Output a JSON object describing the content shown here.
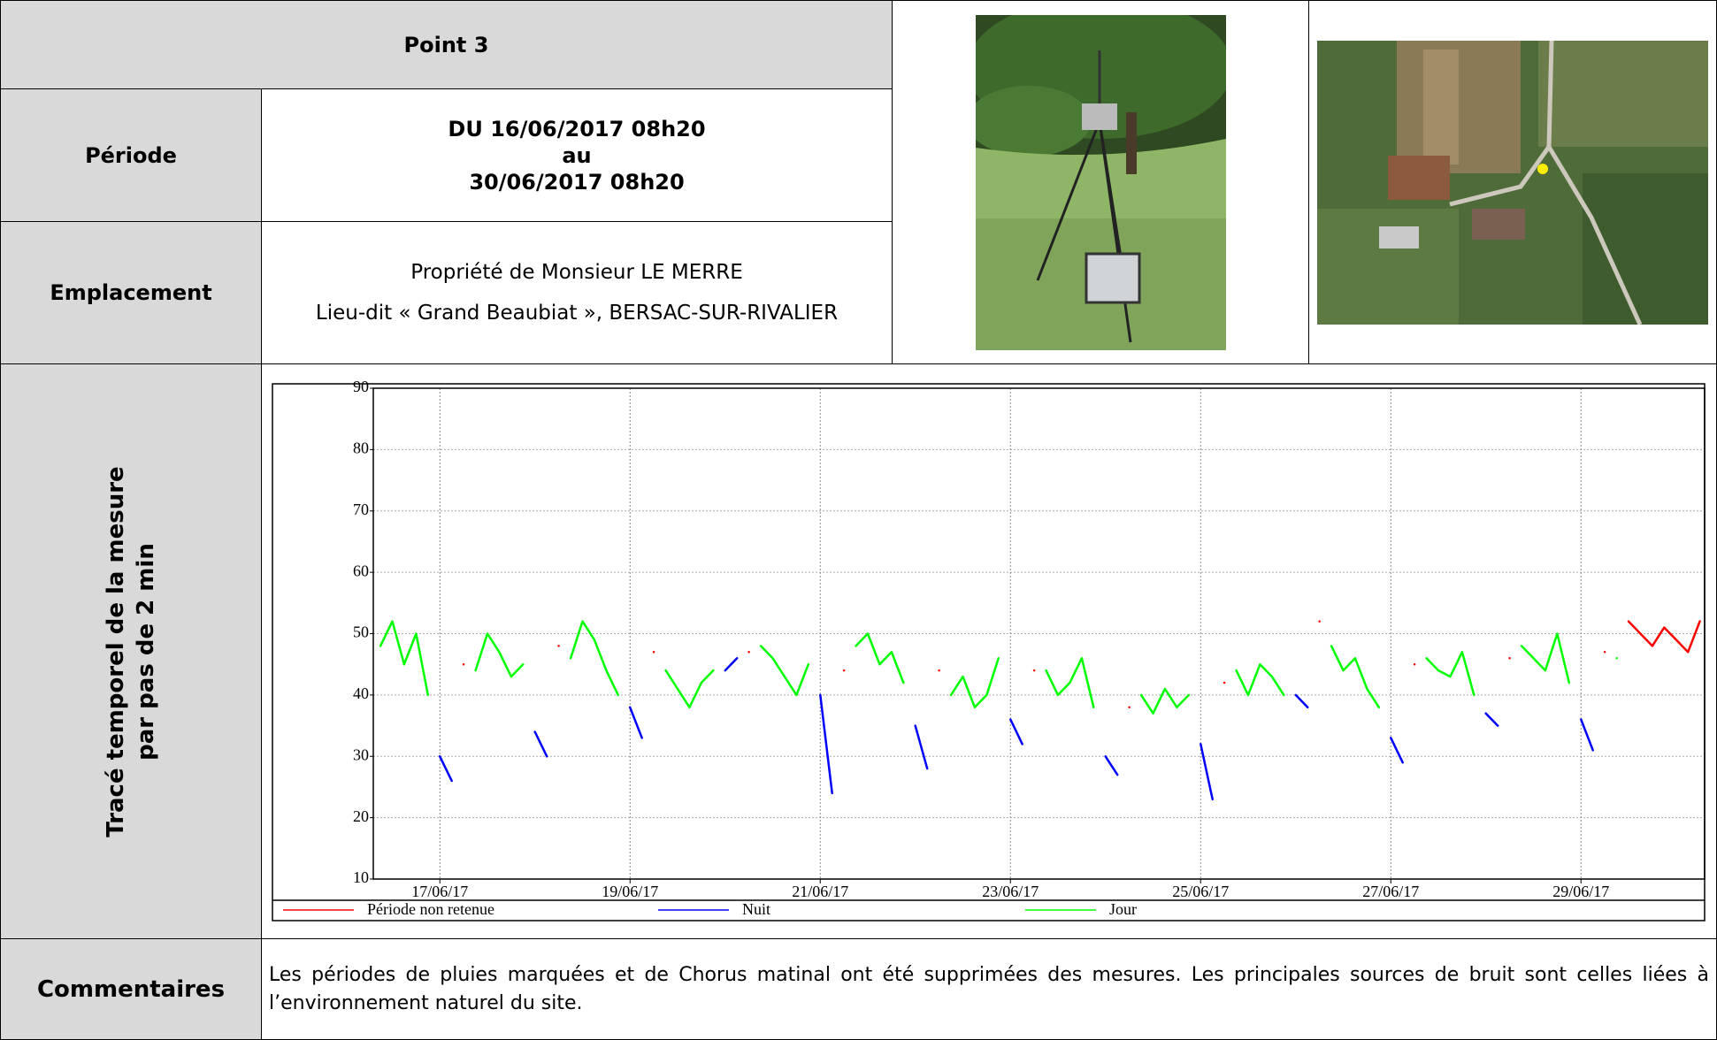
{
  "header": {
    "title": "Point 3"
  },
  "periode": {
    "label": "Période",
    "lines": [
      "DU 16/06/2017 08h20",
      "au",
      "30/06/2017 08h20"
    ]
  },
  "emplacement": {
    "label": "Emplacement",
    "lines": [
      "Propriété de Monsieur LE MERRE",
      "Lieu-dit « Grand Beaubiat », BERSAC-SUR-RIVALIER"
    ]
  },
  "trace": {
    "label_lines": [
      "Tracé temporel de la mesure",
      "par pas de 2 min"
    ]
  },
  "chart_data": {
    "type": "line",
    "xlim": [
      16.3,
      30.3
    ],
    "xticks": [
      {
        "value": 17,
        "label": "17/06/17"
      },
      {
        "value": 19,
        "label": "19/06/17"
      },
      {
        "value": 21,
        "label": "21/06/17"
      },
      {
        "value": 23,
        "label": "23/06/17"
      },
      {
        "value": 25,
        "label": "25/06/17"
      },
      {
        "value": 27,
        "label": "27/06/17"
      },
      {
        "value": 29,
        "label": "29/06/17"
      }
    ],
    "ylim": [
      10,
      90
    ],
    "yticks": [
      10,
      20,
      30,
      40,
      50,
      60,
      70,
      80,
      90
    ],
    "grid": true,
    "legend": "bottom",
    "x": [
      16.375,
      16.5,
      16.625,
      16.75,
      16.875,
      17,
      17.125,
      17.25,
      17.375,
      17.5,
      17.625,
      17.75,
      17.875,
      18,
      18.125,
      18.25,
      18.375,
      18.5,
      18.625,
      18.75,
      18.875,
      19,
      19.125,
      19.25,
      19.375,
      19.5,
      19.625,
      19.75,
      19.875,
      20,
      20.125,
      20.25,
      20.375,
      20.5,
      20.625,
      20.75,
      20.875,
      21,
      21.125,
      21.25,
      21.375,
      21.5,
      21.625,
      21.75,
      21.875,
      22,
      22.125,
      22.25,
      22.375,
      22.5,
      22.625,
      22.75,
      22.875,
      23,
      23.125,
      23.25,
      23.375,
      23.5,
      23.625,
      23.75,
      23.875,
      24,
      24.125,
      24.25,
      24.375,
      24.5,
      24.625,
      24.75,
      24.875,
      25,
      25.125,
      25.25,
      25.375,
      25.5,
      25.625,
      25.75,
      25.875,
      26,
      26.125,
      26.25,
      26.375,
      26.5,
      26.625,
      26.75,
      26.875,
      27,
      27.125,
      27.25,
      27.375,
      27.5,
      27.625,
      27.75,
      27.875,
      28,
      28.125,
      28.25,
      28.375,
      28.5,
      28.625,
      28.75,
      28.875,
      29,
      29.125,
      29.25,
      29.375,
      29.5,
      29.625,
      29.75,
      29.875,
      30,
      30.125,
      30.25
    ],
    "series": [
      {
        "name": "Période non retenue",
        "color": "#ff0000",
        "values": [
          null,
          null,
          null,
          null,
          null,
          null,
          null,
          45,
          null,
          null,
          null,
          null,
          null,
          null,
          null,
          48,
          null,
          null,
          null,
          null,
          null,
          null,
          null,
          47,
          null,
          null,
          null,
          null,
          null,
          null,
          null,
          47,
          null,
          null,
          null,
          null,
          null,
          null,
          null,
          44,
          null,
          null,
          null,
          null,
          null,
          null,
          null,
          44,
          null,
          null,
          null,
          null,
          null,
          null,
          null,
          44,
          null,
          null,
          null,
          null,
          null,
          null,
          null,
          38,
          null,
          null,
          null,
          null,
          null,
          null,
          null,
          42,
          null,
          null,
          null,
          null,
          null,
          null,
          null,
          52,
          null,
          null,
          null,
          null,
          null,
          null,
          null,
          45,
          null,
          null,
          null,
          null,
          null,
          null,
          null,
          46,
          null,
          null,
          null,
          null,
          null,
          null,
          null,
          47,
          null,
          52,
          50,
          48,
          51,
          49,
          47,
          52
        ]
      },
      {
        "name": "Nuit",
        "color": "#0000ff",
        "values": [
          null,
          null,
          null,
          null,
          null,
          30,
          26,
          null,
          null,
          null,
          null,
          null,
          null,
          34,
          30,
          null,
          null,
          null,
          null,
          null,
          null,
          38,
          33,
          null,
          null,
          null,
          null,
          null,
          null,
          44,
          46,
          null,
          null,
          null,
          null,
          null,
          null,
          40,
          24,
          null,
          null,
          null,
          null,
          null,
          null,
          35,
          28,
          null,
          null,
          null,
          null,
          null,
          null,
          36,
          32,
          null,
          null,
          null,
          null,
          null,
          null,
          30,
          27,
          null,
          null,
          null,
          null,
          null,
          null,
          32,
          23,
          null,
          null,
          null,
          null,
          null,
          null,
          40,
          38,
          null,
          null,
          null,
          null,
          null,
          null,
          33,
          29,
          null,
          null,
          null,
          null,
          null,
          null,
          37,
          35,
          null,
          null,
          null,
          null,
          null,
          null,
          36,
          31,
          null,
          null,
          null,
          null,
          null,
          null,
          null,
          null,
          null
        ]
      },
      {
        "name": "Jour",
        "color": "#00ff00",
        "values": [
          48,
          52,
          45,
          50,
          40,
          null,
          null,
          null,
          44,
          50,
          47,
          43,
          45,
          null,
          null,
          null,
          46,
          52,
          49,
          44,
          40,
          null,
          null,
          null,
          44,
          41,
          38,
          42,
          44,
          null,
          null,
          null,
          48,
          46,
          43,
          40,
          45,
          null,
          null,
          null,
          48,
          50,
          45,
          47,
          42,
          null,
          null,
          null,
          40,
          43,
          38,
          40,
          46,
          null,
          null,
          null,
          44,
          40,
          42,
          46,
          38,
          null,
          null,
          null,
          40,
          37,
          41,
          38,
          40,
          null,
          null,
          null,
          44,
          40,
          45,
          43,
          40,
          null,
          null,
          null,
          48,
          44,
          46,
          41,
          38,
          null,
          null,
          null,
          46,
          44,
          43,
          47,
          40,
          null,
          null,
          null,
          48,
          46,
          44,
          50,
          42,
          null,
          null,
          null,
          46,
          null,
          null,
          null,
          null,
          null,
          null,
          null
        ]
      }
    ]
  },
  "commentaires": {
    "label": "Commentaires",
    "text": "Les périodes de pluies marquées et de Chorus matinal ont été supprimées des mesures. Les principales sources de bruit sont celles liées à l’environnement naturel du site."
  }
}
